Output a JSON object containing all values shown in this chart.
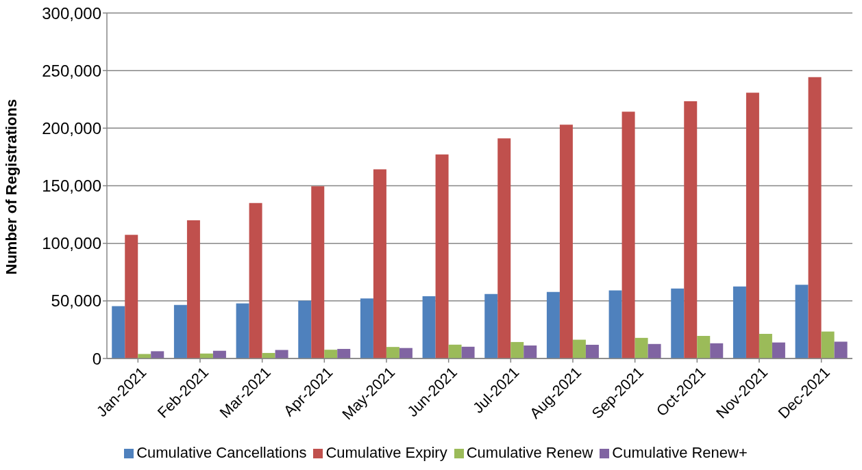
{
  "chart_data": {
    "type": "bar",
    "ylabel": "Number of Registrations",
    "categories": [
      "Jan-2021",
      "Feb-2021",
      "Mar-2021",
      "Apr-2021",
      "May-2021",
      "Jun-2021",
      "Jul-2021",
      "Aug-2021",
      "Sep-2021",
      "Oct-2021",
      "Nov-2021",
      "Dec-2021"
    ],
    "series": [
      {
        "name": "Cumulative Cancellations",
        "color": "#4f81bd",
        "values": [
          45400,
          46500,
          47800,
          50200,
          52200,
          54100,
          56000,
          57800,
          59100,
          60700,
          62500,
          64000
        ]
      },
      {
        "name": "Cumulative Expiry",
        "color": "#c0504d",
        "values": [
          107400,
          120000,
          135000,
          149600,
          164300,
          177200,
          191100,
          203000,
          214300,
          223300,
          230800,
          244300
        ]
      },
      {
        "name": "Cumulative Renew",
        "color": "#9bbb59",
        "values": [
          3900,
          4300,
          4800,
          7600,
          10000,
          12000,
          14300,
          16300,
          17900,
          19600,
          21400,
          23400
        ]
      },
      {
        "name": "Cumulative Renew+",
        "color": "#8064a2",
        "values": [
          6300,
          6700,
          7400,
          8300,
          9100,
          10200,
          11300,
          11900,
          12600,
          13200,
          13900,
          14600
        ]
      }
    ],
    "ylim": [
      0,
      300000
    ],
    "yticks": [
      0,
      {
        "value": 50000,
        "label": "50,000"
      },
      {
        "value": 100000,
        "label": "100,000"
      },
      {
        "value": 150000,
        "label": "150,000"
      },
      {
        "value": 200000,
        "label": "200,000"
      },
      {
        "value": 250000,
        "label": "250,000"
      },
      {
        "value": 300000,
        "label": "300,000"
      }
    ],
    "grid": "y",
    "legend": "bottom"
  }
}
